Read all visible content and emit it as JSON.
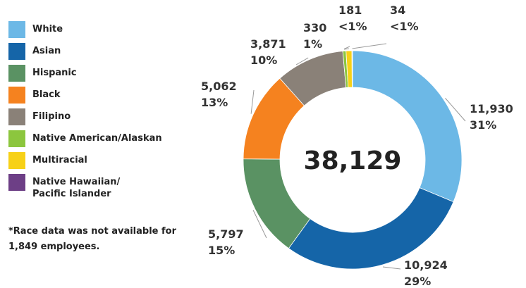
{
  "chart_data": {
    "type": "donut",
    "categories": [
      "White",
      "Asian",
      "Hispanic",
      "Black",
      "Filipino",
      "Native American/Alaskan",
      "Multiracial",
      "Native Hawaiian/\nPacific Islander"
    ],
    "values": [
      11930,
      10924,
      5797,
      5062,
      3871,
      181,
      330,
      34
    ],
    "value_labels": [
      "11,930",
      "10,924",
      "5,797",
      "5,062",
      "3,871",
      "181",
      "330",
      "34"
    ],
    "percent_labels": [
      "31%",
      "29%",
      "15%",
      "13%",
      "10%",
      "<1%",
      "1%",
      "<1%"
    ],
    "colors": [
      "#6cb8e6",
      "#1565a8",
      "#5a9263",
      "#f5821f",
      "#8a8178",
      "#8cc63e",
      "#f7d117",
      "#6d3f86"
    ],
    "center_label": "38,129",
    "note": "*Race data was not available for 1,849 employees."
  }
}
